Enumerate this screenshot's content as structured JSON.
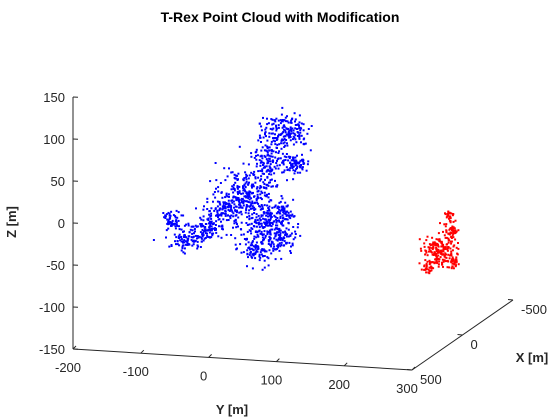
{
  "chart_data": {
    "type": "scatter",
    "title": "T-Rex Point Cloud with Modification",
    "xlabel": "X [m]",
    "ylabel": "Y [m]",
    "zlabel": "Z [m]",
    "projection": "3d",
    "xlim": [
      -500,
      500
    ],
    "ylim": [
      -200,
      300
    ],
    "zlim": [
      -150,
      150
    ],
    "x_ticks": [
      "-500",
      "0",
      "500"
    ],
    "y_ticks": [
      "-200",
      "-100",
      "0",
      "100",
      "200",
      "300"
    ],
    "z_ticks": [
      "150",
      "100",
      "50",
      "0",
      "-50",
      "-100",
      "-150"
    ],
    "grid": false,
    "series": [
      {
        "color": "#0000ff",
        "marker": "point",
        "shape": "t-rex dinosaur (original point cloud)"
      },
      {
        "color": "#ff0000",
        "marker": "point",
        "shape": "t-rex dinosaur (modified, scaled and translated)"
      }
    ]
  }
}
